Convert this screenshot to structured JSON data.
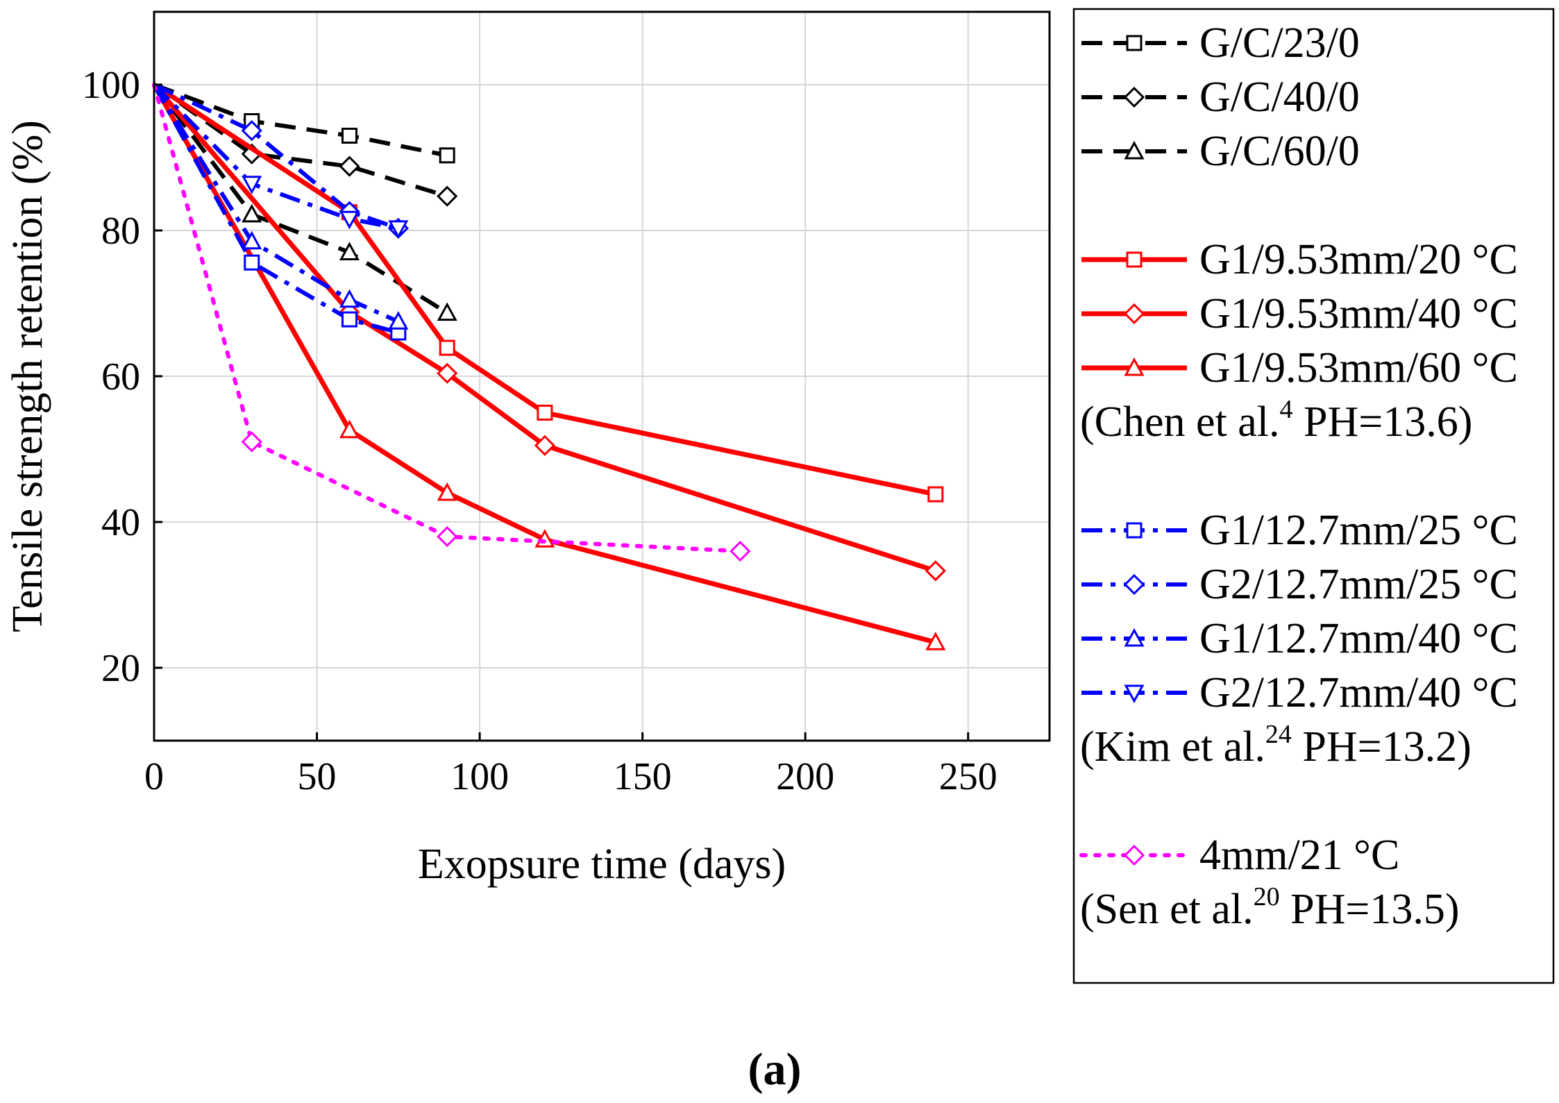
{
  "caption": "(a)",
  "chart_data": {
    "type": "line",
    "title": "",
    "xlabel": "Exopsure time (days)",
    "ylabel": "Tensile strength retention (%)",
    "xlim": [
      0,
      275
    ],
    "ylim": [
      10,
      110
    ],
    "xticks": [
      "0",
      "50",
      "100",
      "150",
      "200",
      "250"
    ],
    "yticks": [
      "20",
      "40",
      "60",
      "80",
      "100"
    ],
    "grid": true,
    "legend_position": "outside-right",
    "series": [
      {
        "name": "G/C/23/0",
        "color": "#000000",
        "dash": "dashed",
        "marker": "square",
        "x": [
          0,
          30,
          60,
          90
        ],
        "y": [
          100,
          95,
          93,
          90.3
        ]
      },
      {
        "name": "G/C/40/0",
        "color": "#000000",
        "dash": "dashed",
        "marker": "diamond",
        "x": [
          0,
          30,
          60,
          90
        ],
        "y": [
          100,
          90.5,
          88.8,
          84.7
        ]
      },
      {
        "name": "G/C/60/0",
        "color": "#000000",
        "dash": "dashed",
        "marker": "triangle-up",
        "x": [
          0,
          30,
          60,
          90
        ],
        "y": [
          100,
          82.2,
          77,
          68.7
        ]
      },
      {
        "name": "G1/9.53mm/20 °C",
        "color": "#ff0000",
        "dash": "solid",
        "marker": "square",
        "x": [
          0,
          60,
          90,
          120,
          240
        ],
        "y": [
          100,
          82.5,
          63.9,
          55,
          43.8
        ]
      },
      {
        "name": "G1/9.53mm/40 °C",
        "color": "#ff0000",
        "dash": "solid",
        "marker": "diamond",
        "x": [
          0,
          60,
          90,
          120,
          240
        ],
        "y": [
          100,
          68.8,
          60.4,
          50.5,
          33.3
        ]
      },
      {
        "name": "G1/9.53mm/60 °C",
        "color": "#ff0000",
        "dash": "solid",
        "marker": "triangle-up",
        "x": [
          0,
          60,
          90,
          120,
          240
        ],
        "y": [
          100,
          52.6,
          44,
          37.6,
          23.5
        ]
      },
      {
        "name": "G1/12.7mm/25 °C",
        "color": "#0000ff",
        "dash": "dashdot",
        "marker": "square",
        "x": [
          0,
          30,
          60,
          75
        ],
        "y": [
          100,
          75.6,
          67.8,
          66
        ]
      },
      {
        "name": "G2/12.7mm/25 °C",
        "color": "#0000ff",
        "dash": "dashdot",
        "marker": "diamond",
        "x": [
          0,
          30,
          60,
          75
        ],
        "y": [
          100,
          93.7,
          82.6,
          80.3
        ]
      },
      {
        "name": "G1/12.7mm/40 °C",
        "color": "#0000ff",
        "dash": "dashdot",
        "marker": "triangle-up",
        "x": [
          0,
          30,
          60,
          75
        ],
        "y": [
          100,
          78.5,
          70.5,
          67.5
        ]
      },
      {
        "name": "G2/12.7mm/40 °C",
        "color": "#0000ff",
        "dash": "dashdot",
        "marker": "triangle-down",
        "x": [
          0,
          30,
          60,
          75
        ],
        "y": [
          100,
          86.4,
          81.6,
          80.3
        ]
      },
      {
        "name": "4mm/21 °C",
        "color": "#ff00ff",
        "dash": "dotted",
        "marker": "diamond",
        "x": [
          0,
          30,
          90,
          180
        ],
        "y": [
          100,
          51,
          38,
          36
        ]
      }
    ],
    "legend": [
      {
        "type": "series",
        "series": 0
      },
      {
        "type": "series",
        "series": 1
      },
      {
        "type": "series",
        "series": 2
      },
      {
        "type": "gap"
      },
      {
        "type": "series",
        "series": 3
      },
      {
        "type": "series",
        "series": 4
      },
      {
        "type": "series",
        "series": 5
      },
      {
        "type": "note",
        "pre": "(Chen et al.",
        "sup": "4",
        "post": " PH=13.6)"
      },
      {
        "type": "gap"
      },
      {
        "type": "series",
        "series": 6
      },
      {
        "type": "series",
        "series": 7
      },
      {
        "type": "series",
        "series": 8
      },
      {
        "type": "series",
        "series": 9
      },
      {
        "type": "note",
        "pre": "(Kim et al.",
        "sup": "24",
        "post": " PH=13.2)"
      },
      {
        "type": "gap"
      },
      {
        "type": "series",
        "series": 10
      },
      {
        "type": "note",
        "pre": "(Sen et al.",
        "sup": "20",
        "post": " PH=13.5)"
      }
    ]
  }
}
